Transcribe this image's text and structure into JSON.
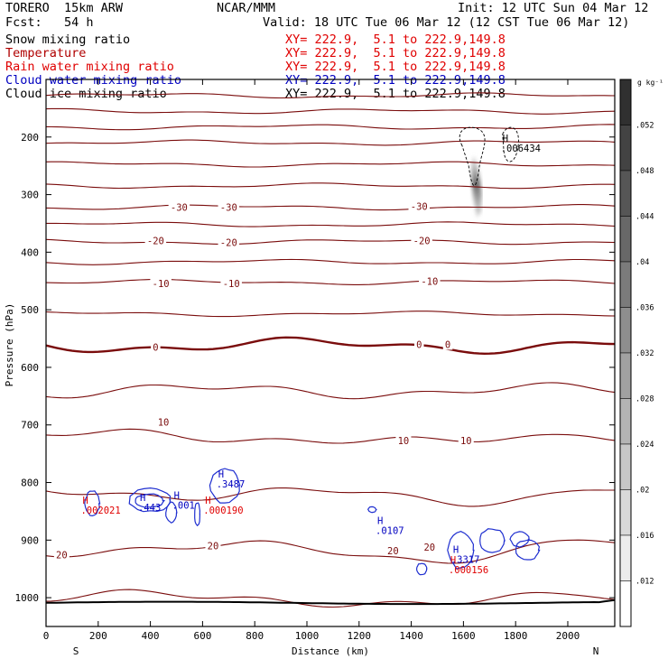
{
  "header": {
    "model": "TORERO  15km ARW",
    "center": "NCAR/MMM",
    "init": "Init: 12 UTC Sun 04 Mar 12",
    "fcst": "Fcst:   54 h",
    "valid": "Valid: 18 UTC Tue 06 Mar 12 (12 CST Tue 06 Mar 12)"
  },
  "fields": [
    {
      "name": "Snow mixing ratio",
      "xy": "XY= 222.9,  5.1 to 222.9,149.8",
      "color": "#000000"
    },
    {
      "name": "Temperature",
      "xy": "XY= 222.9,  5.1 to 222.9,149.8",
      "color": "#b00000"
    },
    {
      "name": "Rain water mixing ratio",
      "xy": "XY= 222.9,  5.1 to 222.9,149.8",
      "color": "#e00000"
    },
    {
      "name": "Cloud water mixing ratio",
      "xy": "XY= 222.9,  5.1 to 222.9,149.8",
      "color": "#0000c0"
    },
    {
      "name": "Cloud ice mixing ratio",
      "xy": "XY= 222.9,  5.1 to 222.9,149.8",
      "color": "#000000"
    }
  ],
  "colorbar": {
    "unit": "g kg⁻¹",
    "ticks": [
      ".052",
      ".048",
      ".044",
      ".04",
      ".036",
      ".032",
      ".028",
      ".024",
      ".02",
      ".016",
      ".012"
    ],
    "levels": [
      0.056,
      0.052,
      0.048,
      0.044,
      0.04,
      0.036,
      0.032,
      0.028,
      0.024,
      0.02,
      0.016,
      0.012,
      0.008
    ],
    "color_dark": "#303030",
    "color_light": "#ffffff"
  },
  "chart_data": {
    "type": "cross-section contour",
    "xlabel": "Distance (km)",
    "ylabel": "Pressure (hPa)",
    "xlim": [
      0,
      2180
    ],
    "ylim": [
      1050,
      100
    ],
    "xticks": [
      "0",
      "200",
      "400",
      "600",
      "800",
      "1000",
      "1200",
      "1400",
      "1600",
      "1800",
      "2000"
    ],
    "yticks": [
      "200",
      "300",
      "400",
      "500",
      "600",
      "700",
      "800",
      "900",
      "1000"
    ],
    "left_end": "S",
    "right_end": "N",
    "temperature_levels_C": [
      -60,
      -55,
      -50,
      -45,
      -40,
      -35,
      -30,
      -25,
      -20,
      -15,
      -10,
      -5,
      0,
      5,
      10,
      15,
      20,
      25
    ],
    "temperature_labels": [
      {
        "text": "-30",
        "x": 510,
        "p": 322
      },
      {
        "text": "-30",
        "x": 700,
        "p": 322
      },
      {
        "text": "-30",
        "x": 1430,
        "p": 320
      },
      {
        "text": "-20",
        "x": 420,
        "p": 380
      },
      {
        "text": "-20",
        "x": 700,
        "p": 383
      },
      {
        "text": "-20",
        "x": 1440,
        "p": 380
      },
      {
        "text": "-10",
        "x": 440,
        "p": 454
      },
      {
        "text": "-10",
        "x": 710,
        "p": 454
      },
      {
        "text": "-10",
        "x": 1470,
        "p": 450
      },
      {
        "text": "0",
        "x": 420,
        "p": 565
      },
      {
        "text": "0",
        "x": 1430,
        "p": 560
      },
      {
        "text": "0",
        "x": 1540,
        "p": 560
      },
      {
        "text": "10",
        "x": 450,
        "p": 695
      },
      {
        "text": "10",
        "x": 1370,
        "p": 727
      },
      {
        "text": "10",
        "x": 1610,
        "p": 727
      },
      {
        "text": "20",
        "x": 60,
        "p": 925
      },
      {
        "text": "20",
        "x": 640,
        "p": 910
      },
      {
        "text": "20",
        "x": 1330,
        "p": 918
      },
      {
        "text": "20",
        "x": 1470,
        "p": 912
      }
    ],
    "extrema_labels": [
      {
        "marker": "H",
        "value": ".006434",
        "x": 1750,
        "p": 208,
        "color": "#000000"
      },
      {
        "marker": "H",
        "value": ".3487",
        "x": 660,
        "p": 791,
        "color": "#0000c0"
      },
      {
        "marker": "H",
        "value": ".443",
        "x": 360,
        "p": 832,
        "color": "#0000c0"
      },
      {
        "marker": "H",
        "value": ".001",
        "x": 490,
        "p": 828,
        "color": "#0000c0"
      },
      {
        "marker": "H",
        "value": ".000190",
        "x": 610,
        "p": 837,
        "color": "#e00000"
      },
      {
        "marker": "H",
        "value": ".0107",
        "x": 1270,
        "p": 872,
        "color": "#0000c0"
      },
      {
        "marker": "H",
        "value": ".002021",
        "x": 140,
        "p": 837,
        "color": "#e00000"
      },
      {
        "marker": "H",
        "value": ".3317",
        "x": 1560,
        "p": 922,
        "color": "#0000c0"
      },
      {
        "marker": "H",
        "value": ".000156",
        "x": 1550,
        "p": 940,
        "color": "#e00000"
      }
    ]
  }
}
